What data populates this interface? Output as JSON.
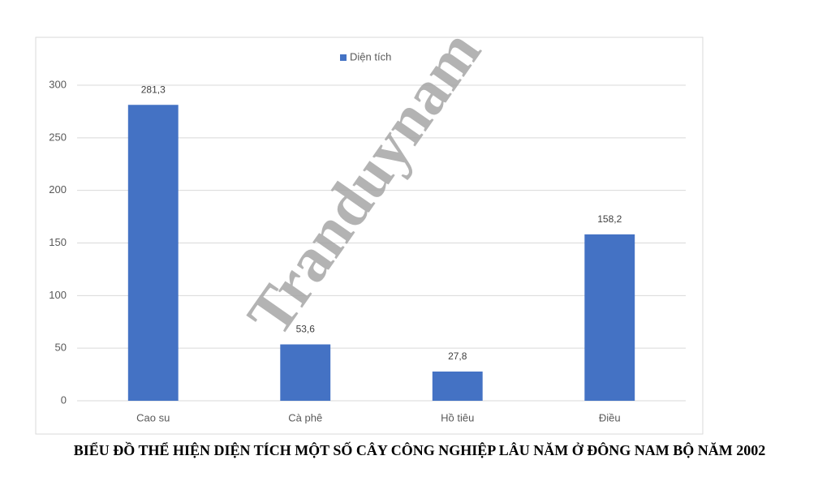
{
  "chart_data": {
    "type": "bar",
    "title": "BIỂU ĐỒ THỂ HIỆN DIỆN TÍCH MỘT SỐ CÂY CÔNG NGHIỆP LÂU NĂM Ở ĐÔNG NAM BỘ NĂM 2002",
    "watermark": "Tranduynam",
    "categories": [
      "Cao su",
      "Cà phê",
      "Hồ tiêu",
      "Điều"
    ],
    "series": [
      {
        "name": "Diện tích",
        "color": "#4472c4",
        "values": [
          281.3,
          53.6,
          27.8,
          158.2
        ],
        "value_labels": [
          "281,3",
          "53,6",
          "27,8",
          "158,2"
        ]
      }
    ],
    "ylim": [
      0,
      300
    ],
    "yticks": [
      0,
      50,
      100,
      150,
      200,
      250,
      300
    ],
    "grid": true,
    "legend": "top"
  }
}
